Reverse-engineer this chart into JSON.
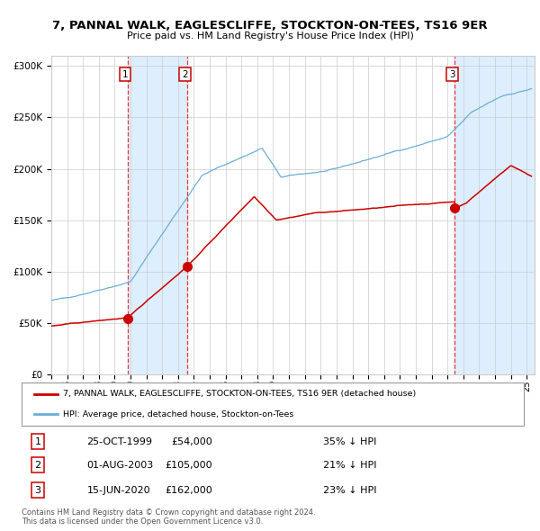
{
  "title": "7, PANNAL WALK, EAGLESCLIFFE, STOCKTON-ON-TEES, TS16 9ER",
  "subtitle": "Price paid vs. HM Land Registry's House Price Index (HPI)",
  "legend_line1": "7, PANNAL WALK, EAGLESCLIFFE, STOCKTON-ON-TEES, TS16 9ER (detached house)",
  "legend_line2": "HPI: Average price, detached house, Stockton-on-Tees",
  "table_rows": [
    {
      "num": "1",
      "date": "25-OCT-1999",
      "price": "£54,000",
      "hpi": "35% ↓ HPI"
    },
    {
      "num": "2",
      "date": "01-AUG-2003",
      "price": "£105,000",
      "hpi": "21% ↓ HPI"
    },
    {
      "num": "3",
      "date": "15-JUN-2020",
      "price": "£162,000",
      "hpi": "23% ↓ HPI"
    }
  ],
  "footnote1": "Contains HM Land Registry data © Crown copyright and database right 2024.",
  "footnote2": "This data is licensed under the Open Government Licence v3.0.",
  "sale_dates_year": [
    1999.82,
    2003.58,
    2020.46
  ],
  "sale_prices": [
    54000,
    105000,
    162000
  ],
  "hpi_color": "#6baed6",
  "price_color": "#cc0000",
  "dot_color": "#cc0000",
  "vline_color": "#ee3333",
  "shade_color": "#ddeeff",
  "grid_color": "#cccccc",
  "ylim": [
    0,
    310000
  ],
  "xlim_start": 1995.0,
  "xlim_end": 2025.5,
  "background_color": "#ffffff"
}
